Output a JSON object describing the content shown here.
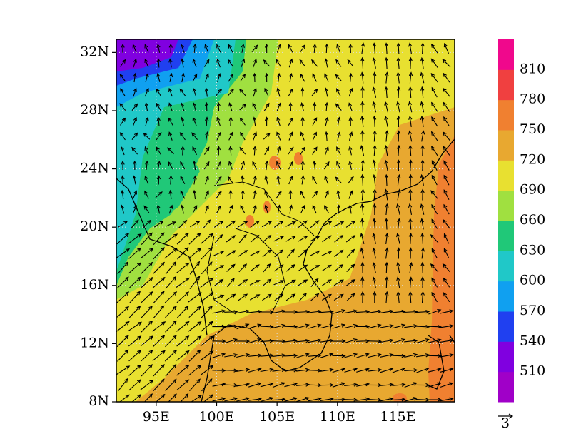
{
  "map": {
    "xlim": [
      91.7,
      119.7
    ],
    "ylim": [
      8,
      32.9
    ],
    "xticks": [
      {
        "value": 95,
        "label": "95E"
      },
      {
        "value": 100,
        "label": "100E"
      },
      {
        "value": 105,
        "label": "105E"
      },
      {
        "value": 110,
        "label": "110E"
      },
      {
        "value": 115,
        "label": "115E"
      }
    ],
    "yticks": [
      {
        "value": 8,
        "label": "8N"
      },
      {
        "value": 12,
        "label": "12N"
      },
      {
        "value": 16,
        "label": "16N"
      },
      {
        "value": 20,
        "label": "20N"
      },
      {
        "value": 24,
        "label": "24N"
      },
      {
        "value": 28,
        "label": "28N"
      },
      {
        "value": 32,
        "label": "32N"
      }
    ],
    "grid": true,
    "colorbar": {
      "levels": [
        510,
        540,
        570,
        600,
        630,
        660,
        690,
        720,
        750,
        780,
        810
      ],
      "colors": [
        "#a000c8",
        "#8000e0",
        "#2040f0",
        "#10a0f0",
        "#20c8c8",
        "#20c878",
        "#a0e040",
        "#e8e030",
        "#e8a830",
        "#f08030",
        "#f04040",
        "#f0088c"
      ]
    },
    "vector_scale": 3
  }
}
